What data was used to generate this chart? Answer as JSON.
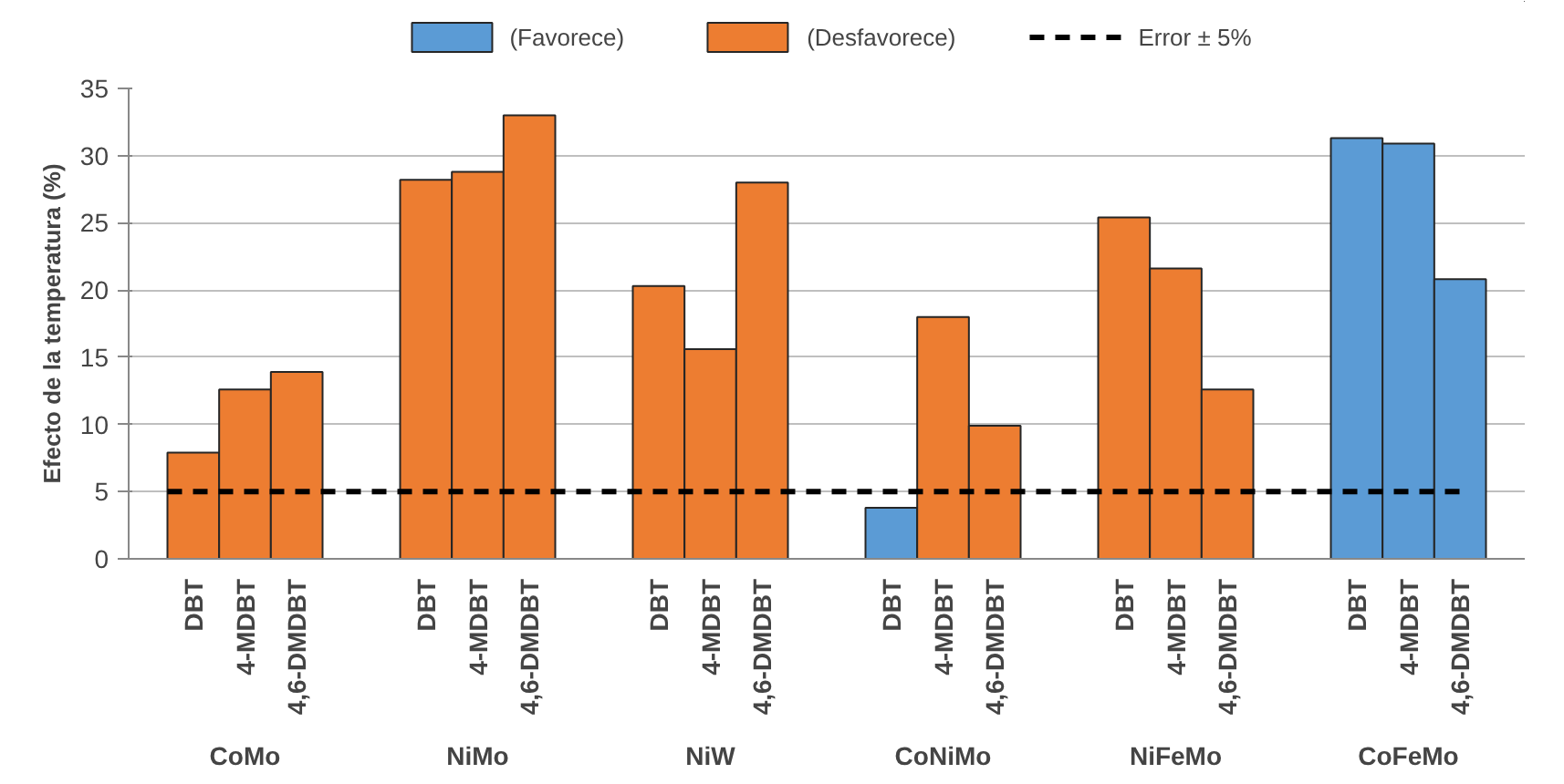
{
  "chart_data": {
    "type": "bar",
    "ylabel": "Efecto de la temperatura (%)",
    "categories": [
      "DBT",
      "4-MDBT",
      "4,6-DMDBT",
      "DBT",
      "4-MDBT",
      "4,6-DMDBT",
      "DBT",
      "4-MDBT",
      "4,6-DMDBT",
      "DBT",
      "4-MDBT",
      "4,6-DMDBT",
      "DBT",
      "4-MDBT",
      "4,6-DMDBT",
      "DBT",
      "4-MDBT",
      "4,6-DMDBT"
    ],
    "annotations": [
      "CoMo",
      "NiMo",
      "NiW",
      "CoNiMo",
      "NiFeMo",
      "CoFeMo"
    ],
    "series": [
      {
        "name": "(Favorece)",
        "color": "#5b9bd5",
        "values": [
          null,
          null,
          null,
          null,
          null,
          null,
          null,
          null,
          null,
          3.8,
          null,
          null,
          null,
          null,
          null,
          31.3,
          30.9,
          20.8
        ]
      },
      {
        "name": "(Desfavorece)",
        "color": "#ed7d31",
        "values": [
          7.9,
          12.6,
          13.9,
          28.2,
          28.8,
          33,
          20.3,
          15.6,
          28,
          null,
          18,
          9.9,
          25.4,
          21.6,
          12.6,
          null,
          null,
          null
        ]
      }
    ],
    "ref_lines": [
      {
        "axis": "y",
        "value": 5,
        "label": "Error ± 5%",
        "color": "#000000",
        "line_style": "dashed"
      }
    ],
    "ylim": [
      0,
      35
    ],
    "yticks": [
      0,
      5,
      10,
      15,
      20,
      25,
      30,
      35
    ],
    "grid": "y",
    "legend": "top"
  }
}
